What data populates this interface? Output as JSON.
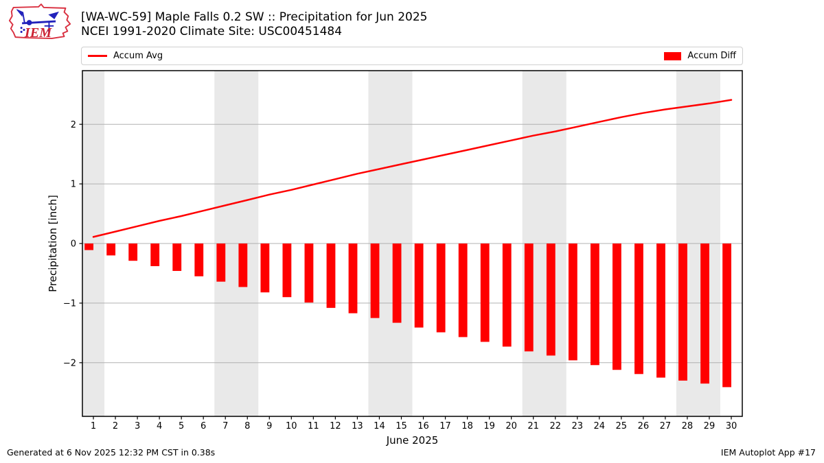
{
  "header": {
    "title_line1": "[WA-WC-59] Maple Falls 0.2 SW :: Precipitation for Jun 2025",
    "title_line2": "NCEI 1991-2020 Climate Site: USC00451484",
    "logo_text": "IEM"
  },
  "legend": {
    "items": [
      {
        "label": "Accum Avg",
        "swatch": "line",
        "color": "#ff0000"
      },
      {
        "label": "Accum Diff",
        "swatch": "rect",
        "color": "#ff0000"
      }
    ]
  },
  "footer": {
    "left": "Generated at 6 Nov 2025 12:32 PM CST in 0.38s",
    "right": "IEM Autoplot App #17"
  },
  "chart_data": {
    "type": "line+bar",
    "title": "[WA-WC-59] Maple Falls 0.2 SW :: Precipitation for Jun 2025",
    "subtitle": "NCEI 1991-2020 Climate Site: USC00451484",
    "xlabel": "June 2025",
    "ylabel": "Precipitation [inch]",
    "x": [
      1,
      2,
      3,
      4,
      5,
      6,
      7,
      8,
      9,
      10,
      11,
      12,
      13,
      14,
      15,
      16,
      17,
      18,
      19,
      20,
      21,
      22,
      23,
      24,
      25,
      26,
      27,
      28,
      29,
      30
    ],
    "series": [
      {
        "name": "Accum Avg",
        "type": "line",
        "color": "#ff0000",
        "values": [
          0.11,
          0.2,
          0.29,
          0.38,
          0.46,
          0.55,
          0.64,
          0.73,
          0.82,
          0.9,
          0.99,
          1.08,
          1.17,
          1.25,
          1.33,
          1.41,
          1.49,
          1.57,
          1.65,
          1.73,
          1.81,
          1.88,
          1.96,
          2.04,
          2.12,
          2.19,
          2.25,
          2.3,
          2.35,
          2.41
        ]
      },
      {
        "name": "Accum Diff",
        "type": "bar",
        "color": "#ff0000",
        "values": [
          -0.11,
          -0.2,
          -0.29,
          -0.38,
          -0.46,
          -0.55,
          -0.64,
          -0.73,
          -0.82,
          -0.9,
          -0.99,
          -1.08,
          -1.17,
          -1.25,
          -1.33,
          -1.41,
          -1.49,
          -1.57,
          -1.65,
          -1.73,
          -1.81,
          -1.88,
          -1.96,
          -2.04,
          -2.12,
          -2.19,
          -2.25,
          -2.3,
          -2.35,
          -2.41
        ]
      }
    ],
    "xlim": [
      0.5,
      30.5
    ],
    "ylim": [
      -2.9,
      2.9
    ],
    "yticks": [
      -2,
      -1,
      0,
      1,
      2
    ],
    "grid": "horizontal",
    "legend_position": "top",
    "weekend_bands": [
      [
        0.5,
        1.5
      ],
      [
        6.5,
        8.5
      ],
      [
        13.5,
        15.5
      ],
      [
        20.5,
        22.5
      ],
      [
        27.5,
        29.5
      ]
    ],
    "colors": {
      "band": "#e9e9e9",
      "grid": "#b0b0b0",
      "spine": "#000000",
      "accent": "#ff0000"
    }
  }
}
